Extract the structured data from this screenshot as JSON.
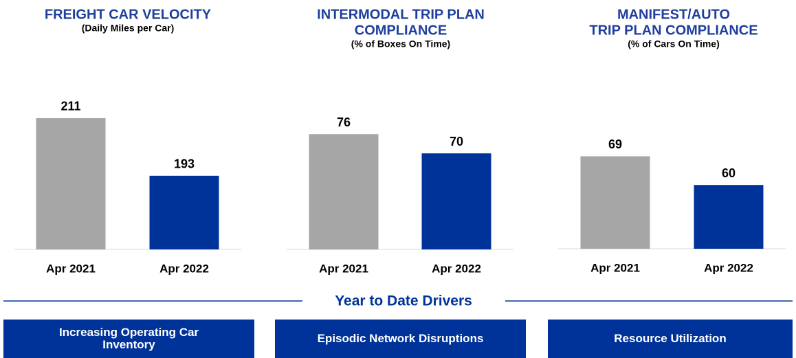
{
  "chart_data": [
    {
      "type": "bar",
      "title": [
        "FREIGHT CAR VELOCITY"
      ],
      "subtitle": "(Daily Miles per Car)",
      "categories": [
        "Apr 2021",
        "Apr 2022"
      ],
      "values": [
        211,
        193
      ],
      "colors": [
        "#a6a6a6",
        "#003399"
      ],
      "ylim": [
        170,
        220
      ]
    },
    {
      "type": "bar",
      "title": [
        "INTERMODAL TRIP PLAN",
        "COMPLIANCE"
      ],
      "subtitle": "(% of Boxes On Time)",
      "categories": [
        "Apr 2021",
        "Apr 2022"
      ],
      "values": [
        76,
        70
      ],
      "colors": [
        "#a6a6a6",
        "#003399"
      ],
      "ylim": [
        40,
        90
      ]
    },
    {
      "type": "bar",
      "title": [
        "MANIFEST/AUTO",
        "TRIP PLAN COMPLIANCE"
      ],
      "subtitle": "(% of Cars On Time)",
      "categories": [
        "Apr 2021",
        "Apr 2022"
      ],
      "values": [
        69,
        60
      ],
      "colors": [
        "#a6a6a6",
        "#003399"
      ],
      "ylim": [
        40,
        90
      ]
    }
  ],
  "section_title": "Year to Date Drivers",
  "drivers": [
    "Increasing Operating Car Inventory",
    "Episodic Network Disruptions",
    "Resource Utilization"
  ]
}
